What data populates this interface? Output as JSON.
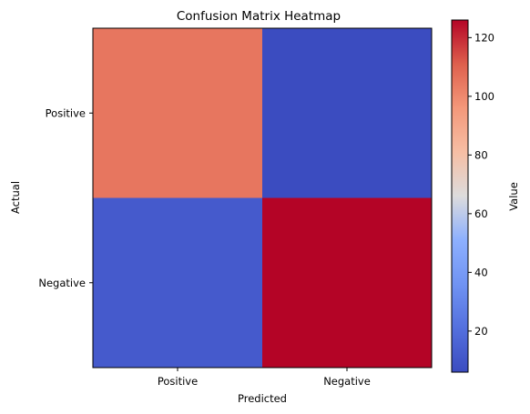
{
  "chart_data": {
    "type": "heatmap",
    "title": "Confusion Matrix Heatmap",
    "xlabel": "Predicted",
    "ylabel": "Actual",
    "x_categories": [
      "Positive",
      "Negative"
    ],
    "y_categories": [
      "Positive",
      "Negative"
    ],
    "values": [
      [
        105,
        6
      ],
      [
        12,
        126
      ]
    ],
    "colormap": "coolwarm",
    "colorbar": {
      "label": "Value",
      "range": [
        6,
        126
      ],
      "ticks": [
        20,
        40,
        60,
        80,
        100,
        120
      ]
    }
  }
}
